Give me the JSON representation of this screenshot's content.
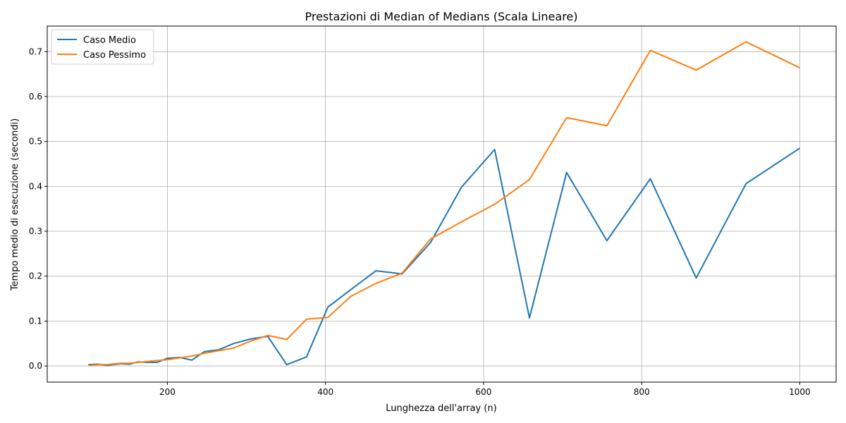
{
  "chart_data": {
    "type": "line",
    "title": "Prestazioni di Median of Medians (Scala Lineare)",
    "xlabel": "Lunghezza dell'array (n)",
    "ylabel": "Tempo medio di esecuzione (secondi)",
    "xlim": [
      48,
      1046
    ],
    "ylim": [
      -0.036,
      0.757
    ],
    "xticks": [
      200,
      400,
      600,
      800,
      1000
    ],
    "yticks": [
      0.0,
      0.1,
      0.2,
      0.3,
      0.4,
      0.5,
      0.6,
      0.7
    ],
    "ytick_labels": [
      "0.0",
      "0.1",
      "0.2",
      "0.3",
      "0.4",
      "0.5",
      "0.6",
      "0.7"
    ],
    "grid": true,
    "legend_position": "top-left",
    "series": [
      {
        "name": "Caso Medio",
        "color": "#1f77b4",
        "x": [
          100,
          112,
          123,
          141,
          152,
          163,
          174,
          187,
          200,
          215,
          231,
          247,
          265,
          284,
          305,
          327,
          351,
          376,
          403,
          432,
          464,
          497,
          533,
          572,
          614,
          658,
          705,
          756,
          811,
          869,
          932,
          1000
        ],
        "y": [
          0.003,
          0.004,
          0.001,
          0.005,
          0.004,
          0.009,
          0.008,
          0.008,
          0.017,
          0.019,
          0.013,
          0.032,
          0.036,
          0.05,
          0.06,
          0.066,
          0.003,
          0.02,
          0.131,
          0.17,
          0.212,
          0.205,
          0.275,
          0.398,
          0.482,
          0.107,
          0.431,
          0.279,
          0.417,
          0.196,
          0.406,
          0.485
        ]
      },
      {
        "name": "Caso Pessimo",
        "color": "#ff7f0e",
        "x": [
          100,
          112,
          123,
          141,
          152,
          163,
          174,
          187,
          200,
          215,
          231,
          247,
          265,
          284,
          305,
          327,
          351,
          376,
          403,
          432,
          464,
          497,
          533,
          572,
          614,
          658,
          705,
          756,
          811,
          869,
          932,
          1000
        ],
        "y": [
          0.001,
          0.003,
          0.003,
          0.006,
          0.006,
          0.008,
          0.01,
          0.012,
          0.014,
          0.018,
          0.022,
          0.028,
          0.034,
          0.04,
          0.055,
          0.068,
          0.059,
          0.104,
          0.108,
          0.155,
          0.184,
          0.207,
          0.283,
          0.321,
          0.36,
          0.415,
          0.553,
          0.535,
          0.703,
          0.659,
          0.722,
          0.664
        ]
      }
    ]
  }
}
